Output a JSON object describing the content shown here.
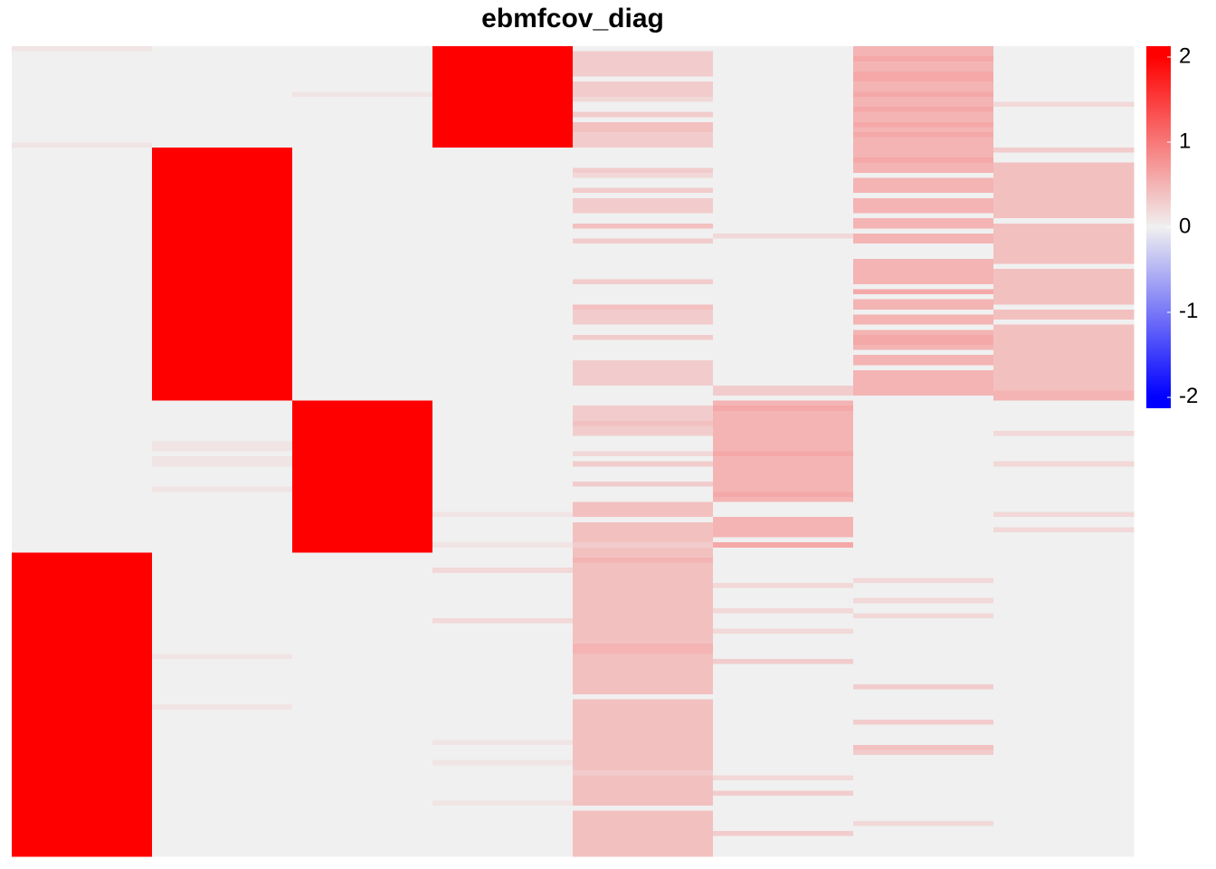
{
  "chart_data": {
    "type": "heatmap",
    "title": "ebmfcov_diag",
    "zlim": [
      -2.13,
      2.13
    ],
    "zticks": [
      2,
      1,
      0,
      -1,
      -2
    ],
    "colors": [
      "#0000ff",
      "#f0f0f0",
      "#ff0000"
    ],
    "values": [
      [
        0.1,
        0,
        0,
        2,
        0,
        0,
        0.5,
        0
      ],
      [
        0,
        0,
        0,
        2,
        0.3,
        0,
        0.5,
        0
      ],
      [
        0,
        0,
        0,
        2,
        0.3,
        0,
        0.6,
        0
      ],
      [
        0,
        0,
        0,
        2,
        0.3,
        0,
        0.5,
        0
      ],
      [
        0,
        0,
        0,
        2,
        0.3,
        0,
        0.5,
        0
      ],
      [
        0,
        0,
        0,
        2,
        0.3,
        0,
        0.6,
        0
      ],
      [
        0,
        0,
        0,
        2,
        0,
        0,
        0.6,
        0
      ],
      [
        0,
        0,
        0,
        2,
        0.3,
        0,
        0.5,
        0
      ],
      [
        0,
        0,
        0,
        2,
        0.3,
        0,
        0.5,
        0
      ],
      [
        0,
        0,
        0.1,
        2,
        0.3,
        0,
        0.6,
        0
      ],
      [
        0,
        0,
        0,
        2,
        0.2,
        0,
        0.5,
        0
      ],
      [
        0,
        0,
        0,
        2,
        0,
        0,
        0.5,
        0.2
      ],
      [
        0,
        0,
        0,
        2,
        0,
        0,
        0.6,
        0
      ],
      [
        0,
        0,
        0,
        2,
        0.3,
        0,
        0.5,
        0
      ],
      [
        0,
        0,
        0,
        2,
        0,
        0,
        0.5,
        0
      ],
      [
        0,
        0,
        0,
        2,
        0.4,
        0,
        0.6,
        0
      ],
      [
        0,
        0,
        0,
        2,
        0.4,
        0,
        0.5,
        0
      ],
      [
        0,
        0,
        0,
        2,
        0.3,
        0,
        0.6,
        0
      ],
      [
        0,
        0,
        0,
        2,
        0.3,
        0,
        0.5,
        0
      ],
      [
        0.1,
        0,
        0,
        2,
        0.3,
        0,
        0.5,
        0
      ],
      [
        0,
        2,
        0,
        0,
        0,
        0,
        0.5,
        0.3
      ],
      [
        0,
        2,
        0,
        0,
        0,
        0,
        0.5,
        0
      ],
      [
        0,
        2,
        0,
        0,
        0,
        0,
        0.6,
        0
      ],
      [
        0,
        2,
        0,
        0,
        0,
        0,
        0.5,
        0.4
      ],
      [
        0,
        2,
        0,
        0,
        0.3,
        0,
        0.5,
        0.4
      ],
      [
        0,
        2,
        0,
        0,
        0.2,
        0,
        0,
        0.4
      ],
      [
        0,
        2,
        0,
        0,
        0,
        0,
        0.5,
        0.4
      ],
      [
        0,
        2,
        0,
        0,
        0,
        0,
        0.5,
        0.4
      ],
      [
        0,
        2,
        0,
        0,
        0.3,
        0,
        0.5,
        0.4
      ],
      [
        0,
        2,
        0,
        0,
        0,
        0,
        0,
        0.4
      ],
      [
        0,
        2,
        0,
        0,
        0.3,
        0,
        0.5,
        0.4
      ],
      [
        0,
        2,
        0,
        0,
        0.3,
        0,
        0.5,
        0.4
      ],
      [
        0,
        2,
        0,
        0,
        0.3,
        0,
        0.5,
        0.4
      ],
      [
        0,
        2,
        0,
        0,
        0,
        0,
        0,
        0.4
      ],
      [
        0,
        2,
        0,
        0,
        0,
        0,
        0.5,
        0
      ],
      [
        0,
        2,
        0,
        0,
        0.4,
        0,
        0.5,
        0.4
      ],
      [
        0,
        2,
        0,
        0,
        0,
        0,
        0,
        0.4
      ],
      [
        0,
        2,
        0,
        0,
        0,
        0.2,
        0.5,
        0.4
      ],
      [
        0,
        2,
        0,
        0,
        0.3,
        0,
        0.5,
        0.4
      ],
      [
        0,
        2,
        0,
        0,
        0,
        0,
        0,
        0.4
      ],
      [
        0,
        2,
        0,
        0,
        0,
        0,
        0,
        0.4
      ],
      [
        0,
        2,
        0,
        0,
        0,
        0,
        0,
        0.4
      ],
      [
        0,
        2,
        0,
        0,
        0,
        0,
        0.5,
        0.4
      ],
      [
        0,
        2,
        0,
        0,
        0,
        0,
        0.5,
        0
      ],
      [
        0,
        2,
        0,
        0,
        0,
        0,
        0.5,
        0.4
      ],
      [
        0,
        2,
        0,
        0,
        0,
        0,
        0.5,
        0.4
      ],
      [
        0,
        2,
        0,
        0,
        0.3,
        0,
        0.5,
        0.4
      ],
      [
        0,
        2,
        0,
        0,
        0,
        0,
        0,
        0.4
      ],
      [
        0,
        2,
        0,
        0,
        0,
        0,
        0.6,
        0.4
      ],
      [
        0,
        2,
        0,
        0,
        0,
        0,
        0,
        0.4
      ],
      [
        0,
        2,
        0,
        0,
        0,
        0,
        0.5,
        0.4
      ],
      [
        0,
        2,
        0,
        0,
        0.4,
        0,
        0.5,
        0
      ],
      [
        0,
        2,
        0,
        0,
        0.3,
        0,
        0,
        0.4
      ],
      [
        0,
        2,
        0,
        0,
        0.3,
        0,
        0.5,
        0.4
      ],
      [
        0,
        2,
        0,
        0,
        0.3,
        0,
        0.5,
        0
      ],
      [
        0,
        2,
        0,
        0,
        0,
        0,
        0,
        0.4
      ],
      [
        0,
        2,
        0,
        0,
        0,
        0,
        0.5,
        0.4
      ],
      [
        0,
        2,
        0,
        0,
        0.3,
        0,
        0.6,
        0.4
      ],
      [
        0,
        2,
        0,
        0,
        0,
        0,
        0.6,
        0.4
      ],
      [
        0,
        2,
        0,
        0,
        0,
        0,
        0.5,
        0.4
      ],
      [
        0,
        2,
        0,
        0,
        0,
        0,
        0,
        0.4
      ],
      [
        0,
        2,
        0,
        0,
        0,
        0,
        0.5,
        0.4
      ],
      [
        0,
        2,
        0,
        0,
        0.3,
        0,
        0.5,
        0.4
      ],
      [
        0,
        2,
        0,
        0,
        0.3,
        0,
        0,
        0.4
      ],
      [
        0,
        2,
        0,
        0,
        0.3,
        0,
        0.5,
        0.4
      ],
      [
        0,
        2,
        0,
        0,
        0.3,
        0,
        0.5,
        0.4
      ],
      [
        0,
        2,
        0,
        0,
        0.3,
        0,
        0.5,
        0.4
      ],
      [
        0,
        2,
        0,
        0,
        0,
        0.3,
        0.5,
        0.4
      ],
      [
        0,
        2,
        0,
        0,
        0,
        0.3,
        0.5,
        0.5
      ],
      [
        0,
        2,
        0,
        0,
        0,
        0,
        0,
        0.5
      ],
      [
        0,
        0,
        2,
        0,
        0,
        0.5,
        0,
        0
      ],
      [
        0,
        0,
        2,
        0,
        0.3,
        0.6,
        0,
        0
      ],
      [
        0,
        0,
        2,
        0,
        0.3,
        0.5,
        0,
        0
      ],
      [
        0,
        0,
        2,
        0,
        0.3,
        0.5,
        0,
        0
      ],
      [
        0,
        0,
        2,
        0,
        0.4,
        0.5,
        0,
        0
      ],
      [
        0,
        0,
        2,
        0,
        0.3,
        0.5,
        0,
        0
      ],
      [
        0,
        0,
        2,
        0,
        0.3,
        0.5,
        0,
        0.2
      ],
      [
        0,
        0,
        2,
        0,
        0,
        0.5,
        0,
        0
      ],
      [
        0,
        0.1,
        2,
        0,
        0,
        0.5,
        0,
        0
      ],
      [
        0,
        0.1,
        2,
        0,
        0,
        0.5,
        0,
        0
      ],
      [
        0,
        0,
        2,
        0,
        0.2,
        0.6,
        0,
        0
      ],
      [
        0,
        0.1,
        2,
        0,
        0,
        0.5,
        0,
        0
      ],
      [
        0,
        0.1,
        2,
        0,
        0.3,
        0.5,
        0,
        0.2
      ],
      [
        0,
        0,
        2,
        0,
        0,
        0.5,
        0,
        0
      ],
      [
        0,
        0,
        2,
        0,
        0,
        0.5,
        0,
        0
      ],
      [
        0,
        0,
        2,
        0,
        0,
        0.5,
        0,
        0
      ],
      [
        0,
        0,
        2,
        0,
        0.3,
        0.5,
        0,
        0
      ],
      [
        0,
        0.1,
        2,
        0,
        0,
        0.5,
        0,
        0
      ],
      [
        0,
        0,
        2,
        0,
        0,
        0.6,
        0,
        0
      ],
      [
        0,
        0,
        2,
        0,
        0,
        0.5,
        0,
        0
      ],
      [
        0,
        0,
        2,
        0,
        0.4,
        0,
        0,
        0
      ],
      [
        0,
        0,
        2,
        0,
        0.4,
        0,
        0,
        0
      ],
      [
        0,
        0,
        2,
        0.1,
        0.4,
        0,
        0,
        0.2
      ],
      [
        0,
        0,
        2,
        0,
        0,
        0.5,
        0,
        0
      ],
      [
        0,
        0,
        2,
        0,
        0.4,
        0.5,
        0,
        0
      ],
      [
        0,
        0,
        2,
        0,
        0.4,
        0.5,
        0,
        0.2
      ],
      [
        0,
        0,
        2,
        0,
        0.4,
        0.5,
        0,
        0
      ],
      [
        0,
        0,
        2,
        0,
        0.4,
        0,
        0,
        0
      ],
      [
        0,
        0,
        2,
        0.1,
        0.3,
        0.6,
        0,
        0
      ],
      [
        0,
        0,
        2,
        0,
        0.4,
        0,
        0,
        0
      ],
      [
        2,
        0,
        0,
        0,
        0.4,
        0,
        0,
        0
      ],
      [
        2,
        0,
        0,
        0,
        0.5,
        0,
        0,
        0
      ],
      [
        2,
        0,
        0,
        0,
        0.4,
        0,
        0,
        0
      ],
      [
        2,
        0,
        0,
        0.2,
        0.4,
        0,
        0,
        0
      ],
      [
        2,
        0,
        0,
        0,
        0.4,
        0,
        0,
        0
      ],
      [
        2,
        0,
        0,
        0,
        0.4,
        0,
        0.2,
        0
      ],
      [
        2,
        0,
        0,
        0,
        0.4,
        0.2,
        0,
        0
      ],
      [
        2,
        0,
        0,
        0,
        0.4,
        0,
        0,
        0
      ],
      [
        2,
        0,
        0,
        0,
        0.4,
        0,
        0,
        0
      ],
      [
        2,
        0,
        0,
        0,
        0.4,
        0,
        0.2,
        0
      ],
      [
        2,
        0,
        0,
        0,
        0.4,
        0,
        0,
        0
      ],
      [
        2,
        0,
        0,
        0,
        0.4,
        0.2,
        0,
        0
      ],
      [
        2,
        0,
        0,
        0,
        0.4,
        0,
        0.2,
        0
      ],
      [
        2,
        0,
        0,
        0.2,
        0.4,
        0,
        0,
        0
      ],
      [
        2,
        0,
        0,
        0,
        0.4,
        0,
        0,
        0
      ],
      [
        2,
        0,
        0,
        0,
        0.4,
        0.2,
        0,
        0
      ],
      [
        2,
        0,
        0,
        0,
        0.4,
        0,
        0,
        0
      ],
      [
        2,
        0,
        0,
        0,
        0.4,
        0,
        0,
        0
      ],
      [
        2,
        0,
        0,
        0,
        0.5,
        0,
        0,
        0
      ],
      [
        2,
        0,
        0,
        0,
        0.5,
        0,
        0,
        0
      ],
      [
        2,
        0.1,
        0,
        0,
        0.4,
        0,
        0,
        0
      ],
      [
        2,
        0,
        0,
        0,
        0.4,
        0.3,
        0,
        0
      ],
      [
        2,
        0,
        0,
        0,
        0.4,
        0,
        0,
        0
      ],
      [
        2,
        0,
        0,
        0,
        0.4,
        0,
        0,
        0
      ],
      [
        2,
        0,
        0,
        0,
        0.4,
        0,
        0,
        0
      ],
      [
        2,
        0,
        0,
        0,
        0.4,
        0,
        0,
        0
      ],
      [
        2,
        0,
        0,
        0,
        0.4,
        0,
        0.3,
        0
      ],
      [
        2,
        0,
        0,
        0,
        0.4,
        0,
        0,
        0
      ],
      [
        2,
        0,
        0,
        0,
        0,
        0,
        0,
        0
      ],
      [
        2,
        0,
        0,
        0,
        0.4,
        0,
        0,
        0
      ],
      [
        2,
        0.1,
        0,
        0,
        0.4,
        0,
        0,
        0
      ],
      [
        2,
        0,
        0,
        0,
        0.4,
        0,
        0,
        0
      ],
      [
        2,
        0,
        0,
        0,
        0.4,
        0,
        0,
        0
      ],
      [
        2,
        0,
        0,
        0,
        0.4,
        0,
        0.3,
        0
      ],
      [
        2,
        0,
        0,
        0,
        0.4,
        0,
        0,
        0
      ],
      [
        2,
        0,
        0,
        0,
        0.4,
        0,
        0,
        0
      ],
      [
        2,
        0,
        0,
        0,
        0.4,
        0,
        0,
        0
      ],
      [
        2,
        0,
        0,
        0.1,
        0.4,
        0,
        0,
        0
      ],
      [
        2,
        0,
        0,
        0,
        0.4,
        0,
        0.4,
        0
      ],
      [
        2,
        0,
        0,
        0,
        0.4,
        0,
        0.3,
        0
      ],
      [
        2,
        0,
        0,
        0,
        0.4,
        0,
        0,
        0
      ],
      [
        2,
        0,
        0,
        0.1,
        0.4,
        0,
        0,
        0
      ],
      [
        2,
        0,
        0,
        0,
        0.4,
        0,
        0,
        0
      ],
      [
        2,
        0,
        0,
        0,
        0.3,
        0,
        0,
        0
      ],
      [
        2,
        0,
        0,
        0,
        0.4,
        0.2,
        0,
        0
      ],
      [
        2,
        0,
        0,
        0,
        0.4,
        0,
        0,
        0
      ],
      [
        2,
        0,
        0,
        0,
        0.4,
        0,
        0,
        0
      ],
      [
        2,
        0,
        0,
        0,
        0.4,
        0.3,
        0,
        0
      ],
      [
        2,
        0,
        0,
        0,
        0.4,
        0,
        0,
        0
      ],
      [
        2,
        0,
        0,
        0.1,
        0.4,
        0,
        0,
        0
      ],
      [
        2,
        0,
        0,
        0,
        0,
        0,
        0,
        0
      ],
      [
        2,
        0,
        0,
        0,
        0.4,
        0,
        0,
        0
      ],
      [
        2,
        0,
        0,
        0,
        0.4,
        0,
        0,
        0
      ],
      [
        2,
        0,
        0,
        0,
        0.4,
        0,
        0.2,
        0
      ],
      [
        2,
        0,
        0,
        0,
        0.4,
        0,
        0,
        0
      ],
      [
        2,
        0,
        0,
        0,
        0.4,
        0.3,
        0,
        0
      ],
      [
        2,
        0,
        0,
        0,
        0.4,
        0,
        0,
        0
      ],
      [
        2,
        0,
        0,
        0,
        0.4,
        0,
        0,
        0
      ],
      [
        2,
        0,
        0,
        0,
        0.4,
        0,
        0,
        0
      ],
      [
        2,
        0,
        0,
        0,
        0.4,
        0,
        0,
        0
      ]
    ]
  }
}
